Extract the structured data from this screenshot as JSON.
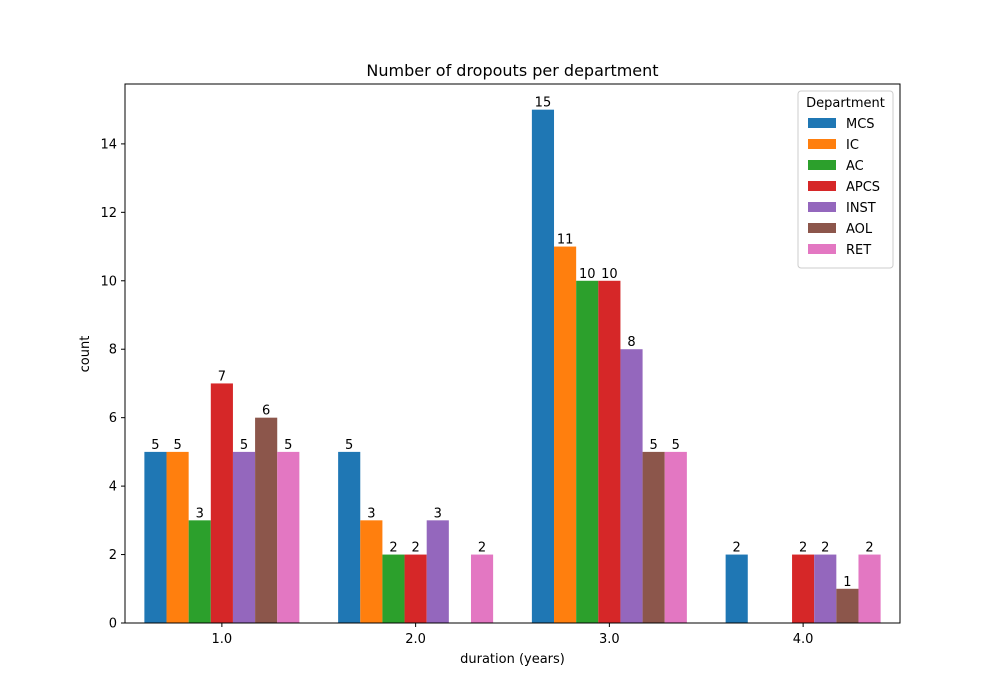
{
  "chart_data": {
    "type": "bar",
    "title": "Number of dropouts per department",
    "xlabel": "duration (years)",
    "ylabel": "count",
    "ylim": [
      0,
      15.75
    ],
    "yticks": [
      0,
      2,
      4,
      6,
      8,
      10,
      12,
      14
    ],
    "categories": [
      "1.0",
      "2.0",
      "3.0",
      "4.0"
    ],
    "grid": false,
    "legend": {
      "title": "Department",
      "position": "top-right"
    },
    "series": [
      {
        "name": "MCS",
        "color": "#1f77b4",
        "values": [
          5,
          5,
          15,
          2
        ]
      },
      {
        "name": "IC",
        "color": "#ff7f0e",
        "values": [
          5,
          3,
          11,
          null
        ]
      },
      {
        "name": "AC",
        "color": "#2ca02c",
        "values": [
          3,
          2,
          10,
          null
        ]
      },
      {
        "name": "APCS",
        "color": "#d62728",
        "values": [
          7,
          2,
          10,
          2
        ]
      },
      {
        "name": "INST",
        "color": "#9467bd",
        "values": [
          5,
          3,
          8,
          2
        ]
      },
      {
        "name": "AOL",
        "color": "#8c564b",
        "values": [
          6,
          null,
          5,
          1
        ]
      },
      {
        "name": "RET",
        "color": "#e377c2",
        "values": [
          5,
          2,
          5,
          2
        ]
      }
    ]
  }
}
